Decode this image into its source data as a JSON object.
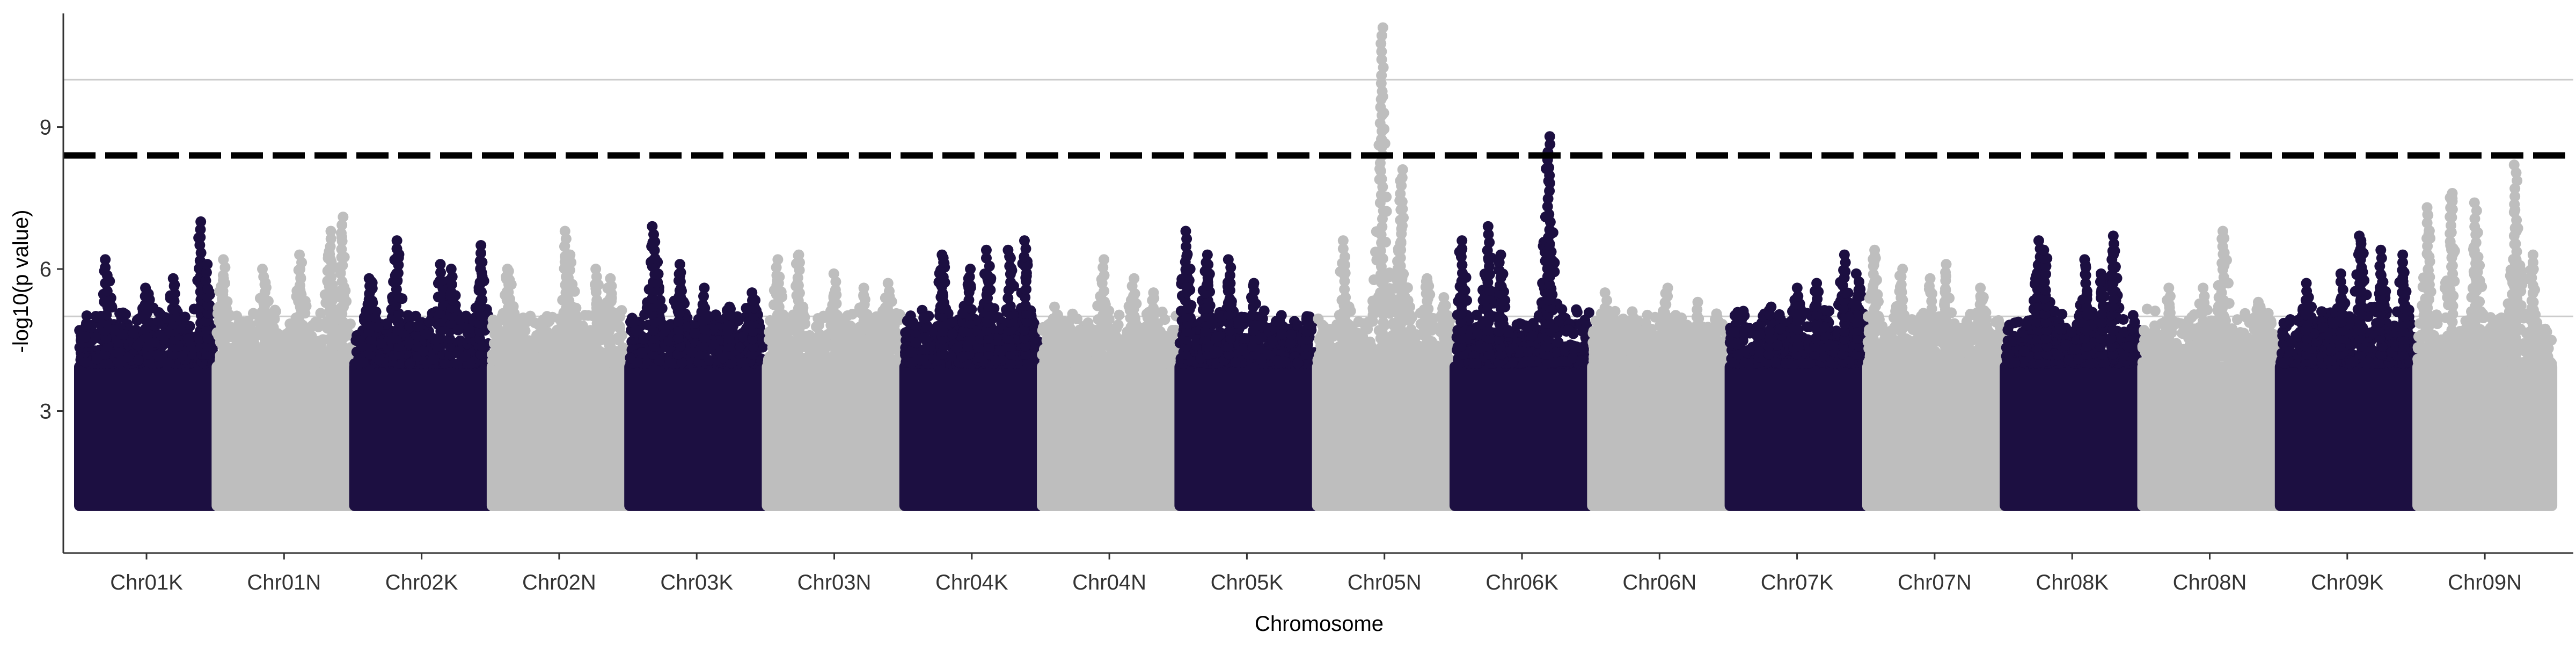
{
  "chart_data": {
    "type": "scatter",
    "subtype": "manhattan",
    "title": "",
    "xlabel": "Chromosome",
    "ylabel": "-log10(p value)",
    "ylim": [
      0,
      11.4
    ],
    "yticks": [
      3,
      6,
      9
    ],
    "hlines": [
      5,
      10
    ],
    "threshold": 8.4,
    "colors": {
      "odd": "#1c0f41",
      "even": "#bebebe",
      "threshold": "#000000",
      "grid": "#cccccc"
    },
    "chromosomes": [
      {
        "name": "Chr01K",
        "peaks": [
          [
            0.2,
            6.2
          ],
          [
            0.5,
            5.6
          ],
          [
            0.7,
            5.8
          ],
          [
            0.9,
            7.0
          ],
          [
            0.95,
            6.1
          ]
        ]
      },
      {
        "name": "Chr01N",
        "peaks": [
          [
            0.05,
            6.2
          ],
          [
            0.35,
            6.0
          ],
          [
            0.62,
            6.3
          ],
          [
            0.85,
            6.8
          ],
          [
            0.93,
            7.1
          ]
        ]
      },
      {
        "name": "Chr02K",
        "peaks": [
          [
            0.12,
            5.8
          ],
          [
            0.32,
            6.6
          ],
          [
            0.65,
            6.1
          ],
          [
            0.72,
            6.0
          ],
          [
            0.94,
            6.5
          ]
        ]
      },
      {
        "name": "Chr02N",
        "peaks": [
          [
            0.12,
            6.0
          ],
          [
            0.55,
            6.8
          ],
          [
            0.58,
            6.3
          ],
          [
            0.78,
            6.0
          ],
          [
            0.88,
            5.8
          ]
        ]
      },
      {
        "name": "Chr03K",
        "peaks": [
          [
            0.18,
            6.9
          ],
          [
            0.37,
            6.1
          ],
          [
            0.55,
            5.6
          ],
          [
            0.74,
            5.2
          ],
          [
            0.92,
            5.5
          ]
        ]
      },
      {
        "name": "Chr03N",
        "peaks": [
          [
            0.08,
            6.2
          ],
          [
            0.23,
            6.3
          ],
          [
            0.5,
            5.9
          ],
          [
            0.72,
            5.6
          ],
          [
            0.9,
            5.7
          ]
        ]
      },
      {
        "name": "Chr04K",
        "peaks": [
          [
            0.28,
            6.3
          ],
          [
            0.48,
            6.0
          ],
          [
            0.62,
            6.4
          ],
          [
            0.78,
            6.4
          ],
          [
            0.9,
            6.6
          ]
        ]
      },
      {
        "name": "Chr04N",
        "peaks": [
          [
            0.1,
            5.2
          ],
          [
            0.45,
            6.2
          ],
          [
            0.68,
            5.8
          ],
          [
            0.82,
            5.5
          ]
        ]
      },
      {
        "name": "Chr05K",
        "peaks": [
          [
            0.05,
            6.8
          ],
          [
            0.2,
            6.3
          ],
          [
            0.37,
            6.2
          ],
          [
            0.55,
            5.7
          ],
          [
            0.95,
            5.0
          ]
        ]
      },
      {
        "name": "Chr05N",
        "peaks": [
          [
            0.2,
            6.6
          ],
          [
            0.48,
            11.1
          ],
          [
            0.63,
            8.1
          ],
          [
            0.82,
            5.8
          ],
          [
            0.95,
            5.4
          ]
        ]
      },
      {
        "name": "Chr06K",
        "peaks": [
          [
            0.05,
            6.6
          ],
          [
            0.25,
            6.9
          ],
          [
            0.34,
            6.3
          ],
          [
            0.68,
            6.5
          ],
          [
            0.7,
            8.8
          ]
        ]
      },
      {
        "name": "Chr06N",
        "peaks": [
          [
            0.1,
            5.5
          ],
          [
            0.3,
            5.1
          ],
          [
            0.55,
            5.6
          ],
          [
            0.78,
            5.3
          ],
          [
            0.92,
            5.0
          ]
        ]
      },
      {
        "name": "Chr07K",
        "peaks": [
          [
            0.3,
            5.2
          ],
          [
            0.5,
            5.6
          ],
          [
            0.64,
            5.7
          ],
          [
            0.85,
            6.3
          ],
          [
            0.95,
            5.9
          ]
        ]
      },
      {
        "name": "Chr07N",
        "peaks": [
          [
            0.05,
            6.4
          ],
          [
            0.25,
            6.0
          ],
          [
            0.47,
            5.8
          ],
          [
            0.58,
            6.1
          ],
          [
            0.85,
            5.6
          ]
        ]
      },
      {
        "name": "Chr08K",
        "peaks": [
          [
            0.25,
            6.6
          ],
          [
            0.3,
            6.4
          ],
          [
            0.6,
            6.2
          ],
          [
            0.72,
            5.9
          ],
          [
            0.8,
            6.7
          ]
        ]
      },
      {
        "name": "Chr08N",
        "peaks": [
          [
            0.2,
            5.6
          ],
          [
            0.45,
            5.6
          ],
          [
            0.6,
            6.8
          ],
          [
            0.86,
            5.3
          ]
        ]
      },
      {
        "name": "Chr09K",
        "peaks": [
          [
            0.2,
            5.7
          ],
          [
            0.46,
            5.9
          ],
          [
            0.6,
            6.7
          ],
          [
            0.75,
            6.4
          ],
          [
            0.92,
            6.3
          ]
        ]
      },
      {
        "name": "Chr09N",
        "peaks": [
          [
            0.08,
            7.3
          ],
          [
            0.25,
            7.6
          ],
          [
            0.43,
            7.4
          ],
          [
            0.73,
            8.2
          ],
          [
            0.85,
            6.3
          ]
        ]
      }
    ]
  }
}
